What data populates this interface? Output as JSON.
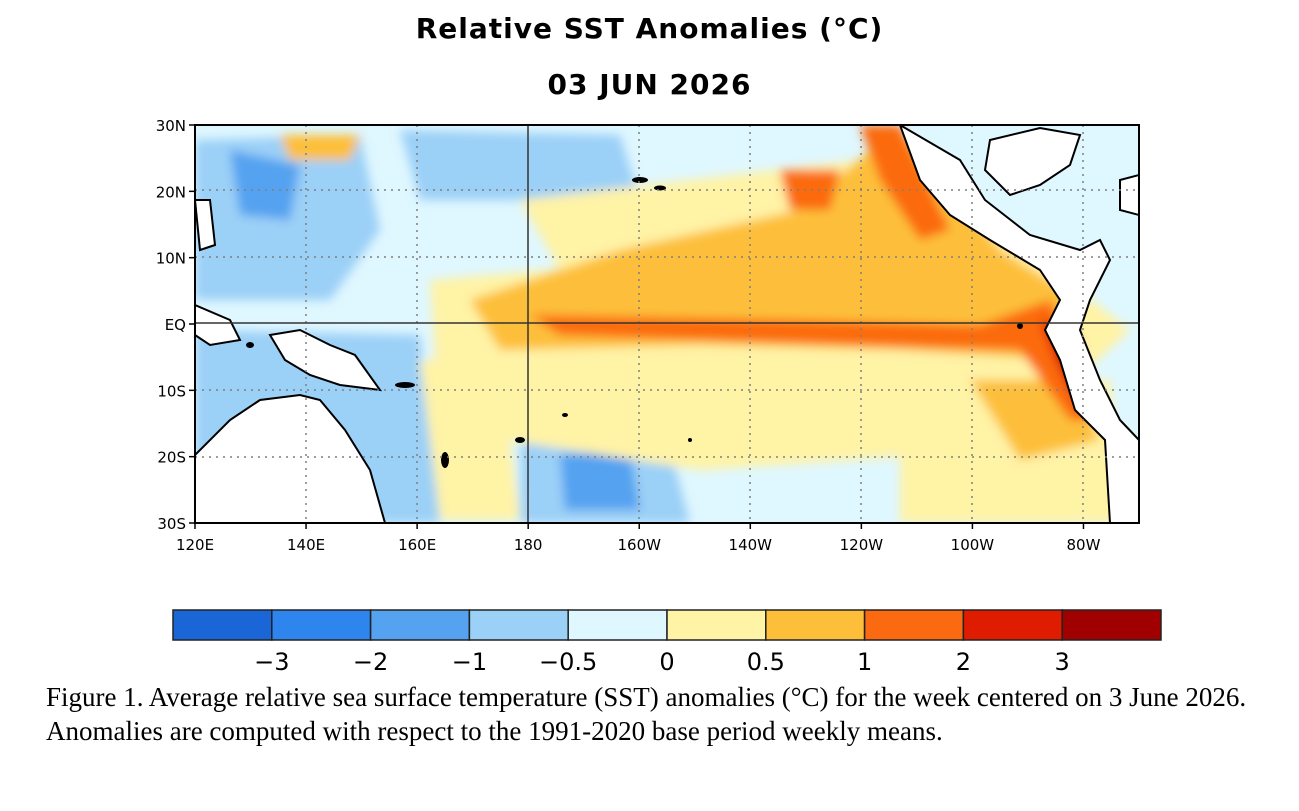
{
  "title": "Relative SST Anomalies (°C)",
  "date_label": "03 JUN 2026",
  "caption": "Figure 1. Average relative sea surface temperature (SST) anomalies (°C) for the week centered on 3 June 2026.  Anomalies are computed with respect to the 1991-2020 base period weekly means.",
  "map": {
    "lon_range": [
      120,
      290
    ],
    "lat_range": [
      -30,
      30
    ],
    "lat_ticks": [
      {
        "value": 30,
        "label": "30N"
      },
      {
        "value": 20,
        "label": "20N"
      },
      {
        "value": 10,
        "label": "10N"
      },
      {
        "value": 0,
        "label": "EQ"
      },
      {
        "value": -10,
        "label": "10S"
      },
      {
        "value": -20,
        "label": "20S"
      },
      {
        "value": -30,
        "label": "30S"
      }
    ],
    "lon_ticks": [
      {
        "value": 120,
        "label": "120E"
      },
      {
        "value": 140,
        "label": "140E"
      },
      {
        "value": 160,
        "label": "160E"
      },
      {
        "value": 180,
        "label": "180"
      },
      {
        "value": 200,
        "label": "160W"
      },
      {
        "value": 220,
        "label": "140W"
      },
      {
        "value": 240,
        "label": "120W"
      },
      {
        "value": 260,
        "label": "100W"
      },
      {
        "value": 280,
        "label": "80W"
      }
    ],
    "land_color": "#ffffff",
    "coast_color": "#000000"
  },
  "colorbar": {
    "colors": [
      "#1a66d6",
      "#2e85ee",
      "#55a2f0",
      "#9bd0f7",
      "#dff7ff",
      "#fff3a6",
      "#fdbf3a",
      "#fb6a10",
      "#e01c00",
      "#a00000"
    ],
    "labels": [
      "−3",
      "−2",
      "−1",
      "−0.5",
      "0",
      "0.5",
      "1",
      "2",
      "3"
    ]
  }
}
